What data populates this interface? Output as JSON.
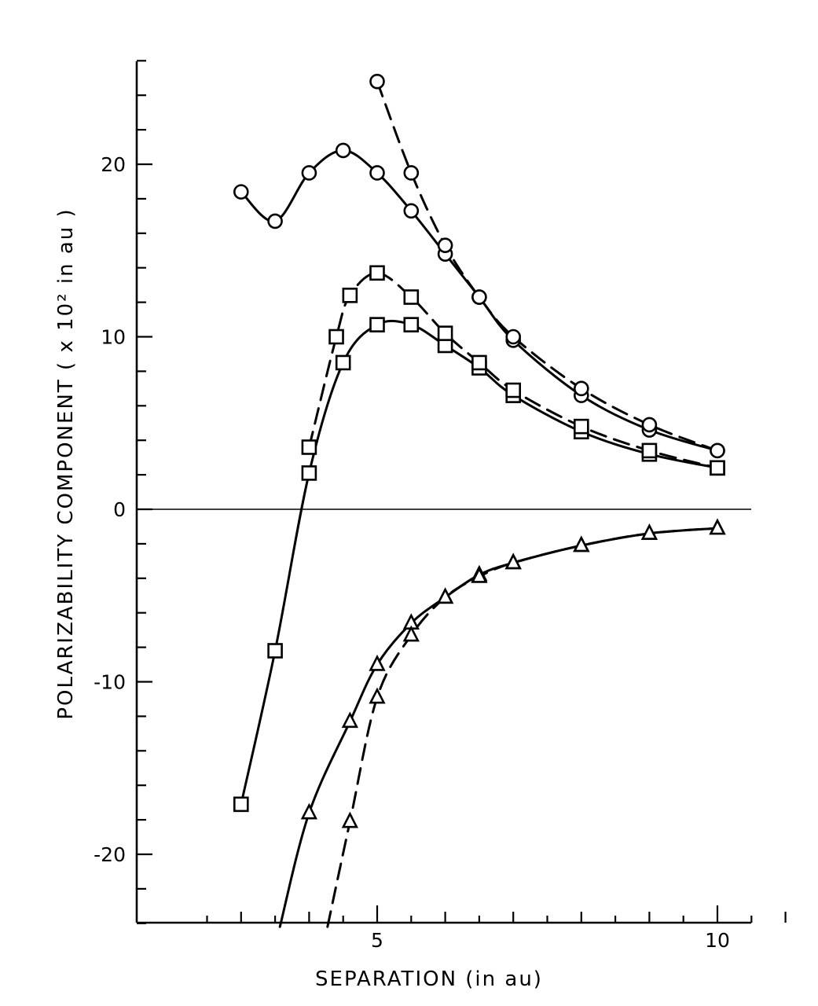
{
  "chart_data": {
    "type": "line",
    "xlabel": "SEPARATION  (in  au)",
    "ylabel": "POLARIZABILITY  COMPONENT  ( x 10² in au )",
    "xlim": [
      2.1,
      11.05
    ],
    "ylim": [
      -24.2,
      26
    ],
    "x_tick_labels": [
      {
        "value": 5,
        "label": "5"
      },
      {
        "value": 10,
        "label": "10"
      }
    ],
    "y_tick_labels": [
      {
        "value": 20,
        "label": "20"
      },
      {
        "value": 10,
        "label": "10"
      },
      {
        "value": 0,
        "label": "0"
      },
      {
        "value": -10,
        "label": "-10"
      },
      {
        "value": -20,
        "label": "-20"
      }
    ],
    "x_minor_step": 0.5,
    "y_minor_step": 2,
    "zero_line": true,
    "grid": false,
    "series": [
      {
        "marker": "circle",
        "line": "solid",
        "x": [
          3,
          3.5,
          4,
          4.5,
          5,
          5.5,
          6,
          6.5,
          7,
          8,
          9,
          10
        ],
        "y": [
          18.4,
          16.7,
          19.5,
          20.8,
          19.5,
          17.3,
          14.8,
          12.3,
          9.8,
          6.6,
          4.6,
          3.4
        ]
      },
      {
        "marker": "circle",
        "line": "dashed",
        "x": [
          5,
          5.5,
          6,
          6.5,
          7,
          8,
          9,
          10
        ],
        "y": [
          24.8,
          19.5,
          15.3,
          12.3,
          10.0,
          7.0,
          4.9,
          3.4
        ]
      },
      {
        "marker": "square",
        "line": "solid",
        "x": [
          3,
          3.5,
          4,
          4.5,
          5,
          5.5,
          6,
          6.5,
          7,
          8,
          9,
          10
        ],
        "y": [
          -17.1,
          -8.2,
          2.1,
          8.5,
          10.7,
          10.7,
          9.5,
          8.2,
          6.6,
          4.5,
          3.2,
          2.4
        ]
      },
      {
        "marker": "square",
        "line": "dashed",
        "x": [
          4,
          4.4,
          4.6,
          5,
          5.5,
          6,
          6.5,
          7,
          8,
          9,
          10
        ],
        "y": [
          3.6,
          10.0,
          12.4,
          13.7,
          12.3,
          10.2,
          8.5,
          6.9,
          4.8,
          3.4,
          2.4
        ]
      },
      {
        "marker": "triangle",
        "line": "solid",
        "x": [
          3.57,
          4,
          4.6,
          5,
          5.5,
          6,
          6.5,
          7,
          8,
          9,
          10
        ],
        "y": [
          -24.2,
          -17.6,
          -12.3,
          -9.0,
          -6.6,
          -5.1,
          -3.8,
          -3.1,
          -2.1,
          -1.4,
          -1.1
        ]
      },
      {
        "marker": "triangle",
        "line": "dashed",
        "x": [
          4.27,
          4.6,
          5,
          5.5,
          6,
          6.5,
          7,
          8,
          9,
          10
        ],
        "y": [
          -24.2,
          -18.1,
          -10.9,
          -7.3,
          -5.1,
          -3.9,
          -3.1,
          -2.1,
          -1.4,
          -1.1
        ]
      }
    ]
  }
}
